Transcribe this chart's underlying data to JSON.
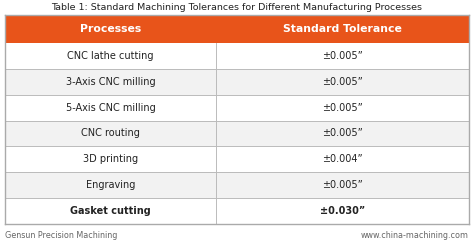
{
  "title": "Table 1: Standard Machining Tolerances for Different Manufacturing Processes",
  "col_headers": [
    "Processes",
    "Standard Tolerance"
  ],
  "rows": [
    [
      "CNC lathe cutting",
      "±0.005”"
    ],
    [
      "3-Axis CNC milling",
      "±0.005”"
    ],
    [
      "5-Axis CNC milling",
      "±0.005”"
    ],
    [
      "CNC routing",
      "±0.005”"
    ],
    [
      "3D printing",
      "±0.004”"
    ],
    [
      "Engraving",
      "±0.005”"
    ],
    [
      "Gasket cutting",
      "±0.030”"
    ]
  ],
  "bold_rows": [
    6
  ],
  "header_bg": "#E8541A",
  "header_fg": "#FFFFFF",
  "row_bg_odd": "#FFFFFF",
  "row_bg_even": "#F2F2F2",
  "border_color": "#BBBBBB",
  "title_color": "#222222",
  "footer_left": "Gensun Precision Machining",
  "footer_right": "www.china-machining.com",
  "footer_color": "#666666",
  "bg_color": "#FFFFFF",
  "outer_border_color": "#AAAAAA",
  "col_split": 0.455,
  "title_fontsize": 6.8,
  "header_fontsize": 7.8,
  "row_fontsize": 7.0,
  "footer_fontsize": 5.8,
  "fig_width": 4.74,
  "fig_height": 2.44,
  "dpi": 100
}
